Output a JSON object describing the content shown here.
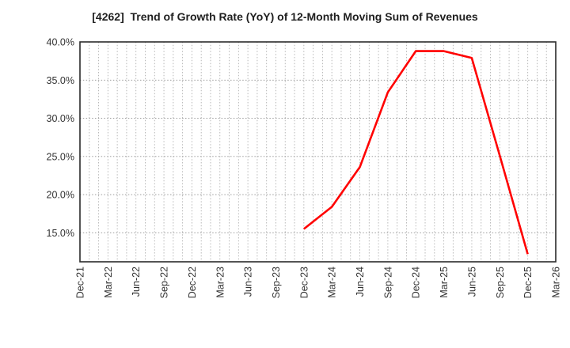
{
  "chart_data": {
    "type": "line",
    "title": "[4262]  Trend of Growth Rate (YoY) of 12-Month Moving Sum of Revenues",
    "xlabel": "",
    "ylabel": "",
    "x_tick_labels": [
      "Dec-21",
      "Mar-22",
      "Jun-22",
      "Sep-22",
      "Dec-22",
      "Mar-23",
      "Jun-23",
      "Sep-23",
      "Dec-23",
      "Mar-24",
      "Jun-24",
      "Sep-24",
      "Dec-24",
      "Mar-25",
      "Jun-25",
      "Sep-25",
      "Dec-25",
      "Mar-26"
    ],
    "months_per_x_tick": 3,
    "y_ticks": [
      15,
      20,
      25,
      30,
      35,
      40
    ],
    "y_tick_labels": [
      "15.0%",
      "20.0%",
      "25.0%",
      "30.0%",
      "35.0%",
      "40.0%"
    ],
    "ylim": [
      11.2,
      40.0
    ],
    "grid": {
      "visible": true,
      "style": "dotted",
      "vertical": "monthly",
      "horizontal": "at-y-ticks"
    },
    "legend": "none",
    "series": [
      {
        "name": "Growth Rate (YoY) of 12-Month Moving Sum of Revenues",
        "color": "#ff0000",
        "points": [
          {
            "x": "Dec-23",
            "y": 15.5
          },
          {
            "x": "Mar-24",
            "y": 18.4
          },
          {
            "x": "Jun-24",
            "y": 23.6
          },
          {
            "x": "Sep-24",
            "y": 33.4
          },
          {
            "x": "Dec-24",
            "y": 38.8
          },
          {
            "x": "Mar-25",
            "y": 38.8
          },
          {
            "x": "Jun-25",
            "y": 37.9
          },
          {
            "x": "Sep-25",
            "y": 25.1
          },
          {
            "x": "Dec-25",
            "y": 12.2
          }
        ]
      }
    ],
    "colors": {
      "line": "#ff0000",
      "plot_border": "#2b2b2b",
      "grid_vertical": "#b0b0b0",
      "grid_horizontal": "#8f8f8f",
      "tick_text": "#333333",
      "title_text": "#1f1f1f",
      "background": "#ffffff"
    }
  }
}
